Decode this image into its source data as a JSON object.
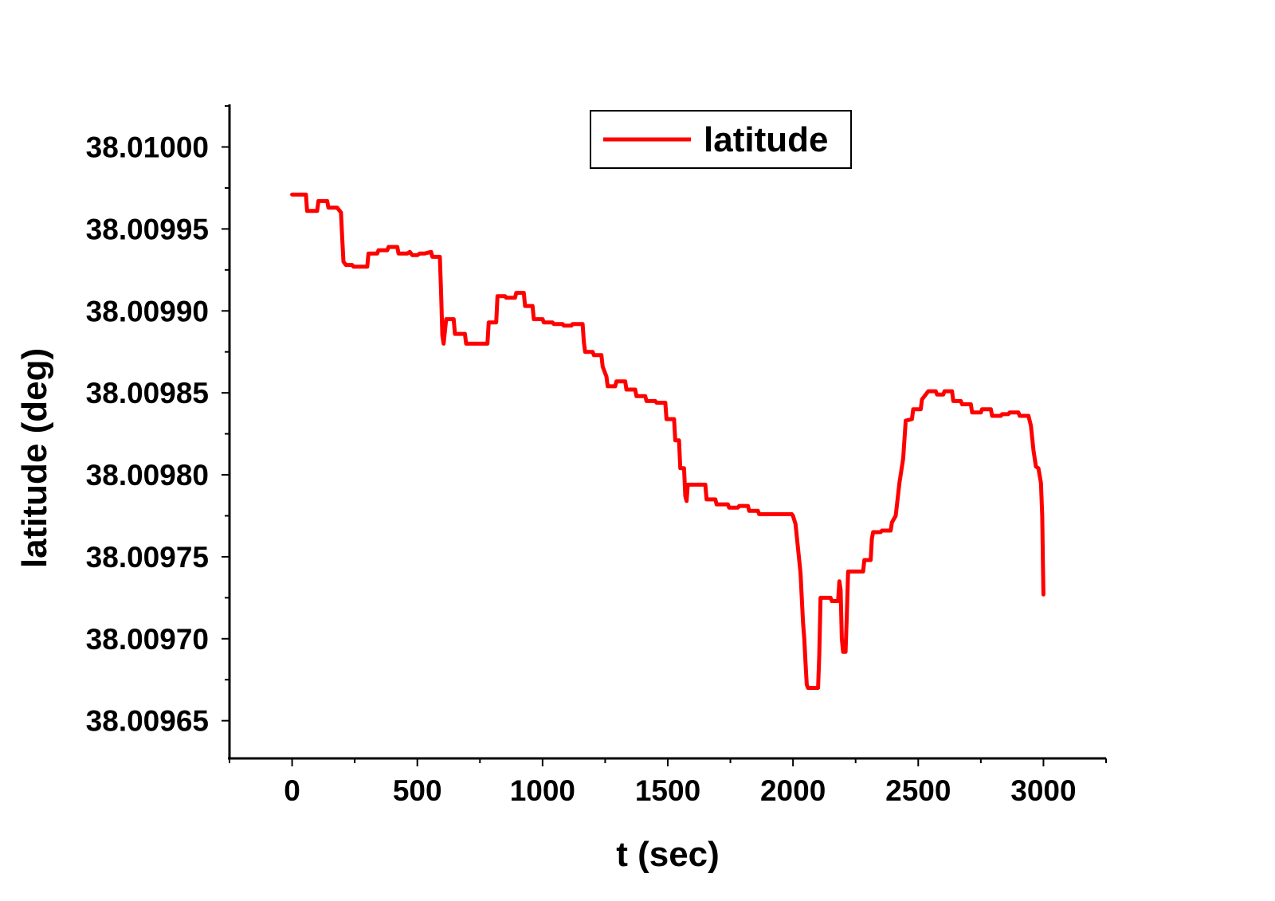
{
  "chart_data": {
    "type": "line",
    "xlabel": "t (sec)",
    "ylabel": "latitude (deg)",
    "xlim": [
      -250,
      3250
    ],
    "ylim": [
      38.009627,
      38.010026
    ],
    "x_ticks": [
      0,
      500,
      1000,
      1500,
      2000,
      2500,
      3000
    ],
    "x_tick_labels": [
      "0",
      "500",
      "1000",
      "1500",
      "2000",
      "2500",
      "3000"
    ],
    "y_ticks": [
      38.00965,
      38.0097,
      38.00975,
      38.0098,
      38.00985,
      38.0099,
      38.00995,
      38.01
    ],
    "y_tick_labels": [
      "38.00965",
      "38.00970",
      "38.00975",
      "38.00980",
      "38.00985",
      "38.00990",
      "38.00995",
      "38.01000"
    ],
    "grid": false,
    "legend_position": "top-center",
    "colors": {
      "series": "#ff0000",
      "axis": "#000000"
    },
    "series": [
      {
        "name": "latitude",
        "color": "#ff0000",
        "points": [
          [
            0,
            38.009971
          ],
          [
            55,
            38.009971
          ],
          [
            60,
            38.009961
          ],
          [
            100,
            38.009961
          ],
          [
            105,
            38.009967
          ],
          [
            140,
            38.009967
          ],
          [
            145,
            38.009963
          ],
          [
            180,
            38.009963
          ],
          [
            195,
            38.00996
          ],
          [
            200,
            38.009945
          ],
          [
            205,
            38.00993
          ],
          [
            215,
            38.009928
          ],
          [
            240,
            38.009928
          ],
          [
            245,
            38.009927
          ],
          [
            300,
            38.009927
          ],
          [
            305,
            38.009935
          ],
          [
            340,
            38.009935
          ],
          [
            345,
            38.009937
          ],
          [
            380,
            38.009937
          ],
          [
            385,
            38.009939
          ],
          [
            420,
            38.009939
          ],
          [
            425,
            38.009935
          ],
          [
            460,
            38.009935
          ],
          [
            470,
            38.009936
          ],
          [
            480,
            38.009934
          ],
          [
            500,
            38.009934
          ],
          [
            510,
            38.009935
          ],
          [
            530,
            38.009935
          ],
          [
            555,
            38.009936
          ],
          [
            560,
            38.009933
          ],
          [
            590,
            38.009933
          ],
          [
            595,
            38.00991
          ],
          [
            600,
            38.009885
          ],
          [
            605,
            38.00988
          ],
          [
            615,
            38.009895
          ],
          [
            645,
            38.009895
          ],
          [
            650,
            38.009886
          ],
          [
            690,
            38.009886
          ],
          [
            695,
            38.00988
          ],
          [
            780,
            38.00988
          ],
          [
            785,
            38.009893
          ],
          [
            815,
            38.009893
          ],
          [
            820,
            38.009909
          ],
          [
            850,
            38.009909
          ],
          [
            855,
            38.009908
          ],
          [
            890,
            38.009908
          ],
          [
            895,
            38.009911
          ],
          [
            925,
            38.009911
          ],
          [
            930,
            38.009903
          ],
          [
            960,
            38.009903
          ],
          [
            965,
            38.009895
          ],
          [
            1000,
            38.009895
          ],
          [
            1005,
            38.009893
          ],
          [
            1040,
            38.009893
          ],
          [
            1045,
            38.009892
          ],
          [
            1080,
            38.009892
          ],
          [
            1085,
            38.009891
          ],
          [
            1115,
            38.009891
          ],
          [
            1120,
            38.009892
          ],
          [
            1160,
            38.009892
          ],
          [
            1165,
            38.009881
          ],
          [
            1170,
            38.009875
          ],
          [
            1200,
            38.009875
          ],
          [
            1205,
            38.009873
          ],
          [
            1235,
            38.009873
          ],
          [
            1240,
            38.009866
          ],
          [
            1255,
            38.00986
          ],
          [
            1260,
            38.009854
          ],
          [
            1290,
            38.009854
          ],
          [
            1295,
            38.009857
          ],
          [
            1330,
            38.009857
          ],
          [
            1335,
            38.009852
          ],
          [
            1370,
            38.009852
          ],
          [
            1375,
            38.009848
          ],
          [
            1410,
            38.009848
          ],
          [
            1415,
            38.009845
          ],
          [
            1450,
            38.009845
          ],
          [
            1455,
            38.009844
          ],
          [
            1490,
            38.009844
          ],
          [
            1495,
            38.009834
          ],
          [
            1525,
            38.009834
          ],
          [
            1530,
            38.009821
          ],
          [
            1545,
            38.009821
          ],
          [
            1550,
            38.009804
          ],
          [
            1565,
            38.009804
          ],
          [
            1570,
            38.009787
          ],
          [
            1575,
            38.009784
          ],
          [
            1580,
            38.009794
          ],
          [
            1650,
            38.009794
          ],
          [
            1655,
            38.009785
          ],
          [
            1690,
            38.009785
          ],
          [
            1695,
            38.009782
          ],
          [
            1740,
            38.009782
          ],
          [
            1745,
            38.00978
          ],
          [
            1780,
            38.00978
          ],
          [
            1785,
            38.009781
          ],
          [
            1820,
            38.009781
          ],
          [
            1825,
            38.009778
          ],
          [
            1860,
            38.009778
          ],
          [
            1865,
            38.009776
          ],
          [
            1900,
            38.009776
          ],
          [
            1930,
            38.009776
          ],
          [
            1960,
            38.009776
          ],
          [
            1995,
            38.009776
          ],
          [
            2000,
            38.009775
          ],
          [
            2010,
            38.00977
          ],
          [
            2030,
            38.00974
          ],
          [
            2040,
            38.00971
          ],
          [
            2045,
            38.0097
          ],
          [
            2050,
            38.009685
          ],
          [
            2055,
            38.009672
          ],
          [
            2060,
            38.00967
          ],
          [
            2100,
            38.00967
          ],
          [
            2105,
            38.00969
          ],
          [
            2110,
            38.009725
          ],
          [
            2150,
            38.009725
          ],
          [
            2155,
            38.009723
          ],
          [
            2180,
            38.009723
          ],
          [
            2185,
            38.009735
          ],
          [
            2190,
            38.00973
          ],
          [
            2195,
            38.0097
          ],
          [
            2200,
            38.009692
          ],
          [
            2210,
            38.009692
          ],
          [
            2215,
            38.009715
          ],
          [
            2220,
            38.009741
          ],
          [
            2280,
            38.009741
          ],
          [
            2285,
            38.009748
          ],
          [
            2310,
            38.009748
          ],
          [
            2315,
            38.009761
          ],
          [
            2320,
            38.009765
          ],
          [
            2350,
            38.009765
          ],
          [
            2355,
            38.009766
          ],
          [
            2390,
            38.009766
          ],
          [
            2395,
            38.009771
          ],
          [
            2410,
            38.009775
          ],
          [
            2425,
            38.009795
          ],
          [
            2440,
            38.00981
          ],
          [
            2450,
            38.009833
          ],
          [
            2475,
            38.009834
          ],
          [
            2480,
            38.00984
          ],
          [
            2510,
            38.00984
          ],
          [
            2515,
            38.009846
          ],
          [
            2540,
            38.009851
          ],
          [
            2570,
            38.009851
          ],
          [
            2575,
            38.009849
          ],
          [
            2600,
            38.009849
          ],
          [
            2605,
            38.009851
          ],
          [
            2635,
            38.009851
          ],
          [
            2640,
            38.009845
          ],
          [
            2670,
            38.009845
          ],
          [
            2675,
            38.009843
          ],
          [
            2710,
            38.009843
          ],
          [
            2715,
            38.009838
          ],
          [
            2750,
            38.009838
          ],
          [
            2755,
            38.00984
          ],
          [
            2790,
            38.00984
          ],
          [
            2795,
            38.009836
          ],
          [
            2830,
            38.009836
          ],
          [
            2835,
            38.009837
          ],
          [
            2860,
            38.009837
          ],
          [
            2865,
            38.009838
          ],
          [
            2900,
            38.009838
          ],
          [
            2905,
            38.009836
          ],
          [
            2940,
            38.009836
          ],
          [
            2950,
            38.00983
          ],
          [
            2960,
            38.009815
          ],
          [
            2970,
            38.009805
          ],
          [
            2980,
            38.009804
          ],
          [
            2990,
            38.009795
          ],
          [
            2995,
            38.009775
          ],
          [
            2998,
            38.009745
          ],
          [
            3000,
            38.009727
          ]
        ]
      }
    ]
  }
}
